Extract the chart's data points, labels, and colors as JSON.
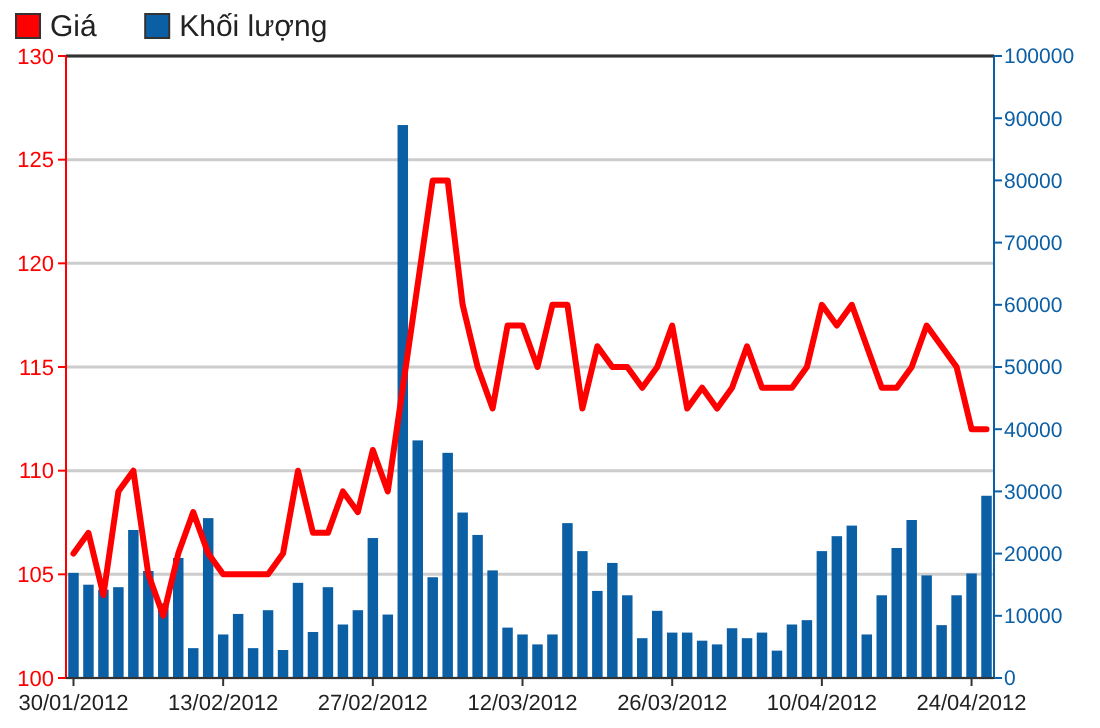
{
  "chart_data": {
    "type": "line",
    "categories": [
      "30/01/2012",
      null,
      null,
      null,
      null,
      null,
      null,
      null,
      null,
      null,
      "13/02/2012",
      null,
      null,
      null,
      null,
      null,
      null,
      null,
      null,
      null,
      "27/02/2012",
      null,
      null,
      null,
      null,
      null,
      null,
      null,
      null,
      null,
      "12/03/2012",
      null,
      null,
      null,
      null,
      null,
      null,
      null,
      null,
      null,
      "26/03/2012",
      null,
      null,
      null,
      null,
      null,
      null,
      null,
      null,
      null,
      "10/04/2012",
      null,
      null,
      null,
      null,
      null,
      null,
      null,
      null,
      null,
      "24/04/2012",
      null
    ],
    "series": [
      {
        "name": "Khối lượng",
        "type": "bar",
        "axis": "y2",
        "color": "#0b5fa5",
        "values": [
          16900,
          15000,
          14200,
          14600,
          23800,
          17200,
          12000,
          19300,
          4800,
          25700,
          7000,
          10300,
          4800,
          10900,
          4500,
          15300,
          7400,
          14600,
          8600,
          10900,
          22500,
          10200,
          88900,
          38200,
          16200,
          36200,
          26600,
          23000,
          17300,
          8100,
          7000,
          5400,
          7000,
          24900,
          20400,
          14000,
          18500,
          13300,
          6400,
          10800,
          7300,
          7300,
          6000,
          5400,
          8000,
          6400,
          7300,
          4400,
          8600,
          9300,
          20400,
          22800,
          24500,
          7000,
          13300,
          20900,
          25400,
          16500,
          8500,
          13300,
          16800,
          29300
        ]
      },
      {
        "name": "Giá",
        "color": "#ff0000",
        "values": [
          106,
          107,
          104,
          109,
          110,
          105,
          103,
          106,
          108,
          106,
          105,
          105,
          105,
          105,
          106,
          110,
          107,
          107,
          109,
          108,
          111,
          109,
          114,
          119,
          124,
          124,
          118,
          115,
          113,
          117,
          117,
          115,
          118,
          118,
          113,
          116,
          115,
          115,
          114,
          115,
          117,
          113,
          114,
          113,
          114,
          116,
          114,
          114,
          114,
          115,
          118,
          117,
          118,
          116,
          114,
          114,
          115,
          117,
          116,
          115,
          112,
          112
        ]
      }
    ],
    "ylim": [
      100,
      130
    ],
    "yticks": [
      100,
      105,
      110,
      115,
      120,
      125,
      130
    ],
    "y2lim": [
      0,
      100000
    ],
    "y2ticks": [
      0,
      10000,
      20000,
      30000,
      40000,
      50000,
      60000,
      70000,
      80000,
      90000,
      100000
    ],
    "grid": "y",
    "legend": "top left",
    "line_style": "solid",
    "marker": "none"
  }
}
